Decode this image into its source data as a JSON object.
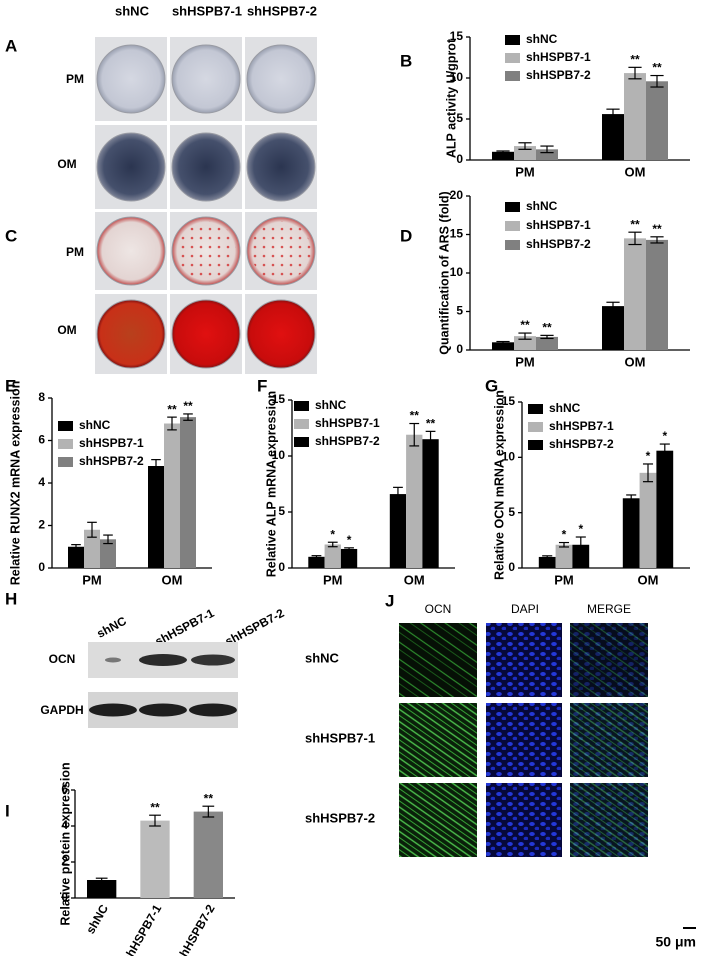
{
  "panels": {
    "A": {
      "label": "A",
      "columns": [
        "shNC",
        "shHSPB7-1",
        "shHSPB7-2"
      ],
      "rows": [
        "PM",
        "OM"
      ]
    },
    "C": {
      "label": "C",
      "rows": [
        "PM",
        "OM"
      ]
    },
    "H": {
      "label": "H",
      "columns": [
        "shNC",
        "shHSPB7-1",
        "shHSPB7-2"
      ],
      "rows": [
        "OCN",
        "GAPDH"
      ]
    },
    "J": {
      "label": "J",
      "columns": [
        "OCN",
        "DAPI",
        "MERGE"
      ],
      "rows": [
        "shNC",
        "shHSPB7-1",
        "shHSPB7-2"
      ],
      "scale": "50 μm"
    }
  },
  "chart_data": [
    {
      "type": "bar",
      "panel": "B",
      "ylabel": "ALP activity U/gprot",
      "categories": [
        "PM",
        "OM"
      ],
      "series": [
        {
          "name": "shNC",
          "color": "#000000",
          "values": [
            1.0,
            5.6
          ],
          "errors": [
            0.1,
            0.6
          ],
          "significance": [
            null,
            null
          ]
        },
        {
          "name": "shHSPB7-1",
          "color": "#b3b3b3",
          "values": [
            1.7,
            10.6
          ],
          "errors": [
            0.4,
            0.7
          ],
          "significance": [
            null,
            "**"
          ]
        },
        {
          "name": "shHSPB7-2",
          "color": "#808080",
          "values": [
            1.3,
            9.6
          ],
          "errors": [
            0.4,
            0.7
          ],
          "significance": [
            null,
            "**"
          ]
        }
      ],
      "ylim": [
        0,
        15
      ],
      "yticks": [
        0,
        5,
        10,
        15
      ],
      "grid": false,
      "legend": "upper left"
    },
    {
      "type": "bar",
      "panel": "D",
      "ylabel": "Quantification of ARS (fold)",
      "categories": [
        "PM",
        "OM"
      ],
      "series": [
        {
          "name": "shNC",
          "color": "#000000",
          "values": [
            1.0,
            5.7
          ],
          "errors": [
            0.1,
            0.5
          ],
          "significance": [
            null,
            null
          ]
        },
        {
          "name": "shHSPB7-1",
          "color": "#b3b3b3",
          "values": [
            1.8,
            14.5
          ],
          "errors": [
            0.4,
            0.8
          ],
          "significance": [
            "**",
            "**"
          ]
        },
        {
          "name": "shHSPB7-2",
          "color": "#808080",
          "values": [
            1.7,
            14.3
          ],
          "errors": [
            0.2,
            0.4
          ],
          "significance": [
            "**",
            "**"
          ]
        }
      ],
      "ylim": [
        0,
        20
      ],
      "yticks": [
        0,
        5,
        10,
        15,
        20
      ],
      "grid": false,
      "legend": "upper left"
    },
    {
      "type": "bar",
      "panel": "E",
      "ylabel": "Relative RUNX2 mRNA expression",
      "categories": [
        "PM",
        "OM"
      ],
      "series": [
        {
          "name": "shNC",
          "color": "#000000",
          "values": [
            1.0,
            4.8
          ],
          "errors": [
            0.1,
            0.3
          ],
          "significance": [
            null,
            null
          ]
        },
        {
          "name": "shHSPB7-1",
          "color": "#b3b3b3",
          "values": [
            1.8,
            6.8
          ],
          "errors": [
            0.35,
            0.3
          ],
          "significance": [
            null,
            "**"
          ]
        },
        {
          "name": "shHSPB7-2",
          "color": "#808080",
          "values": [
            1.35,
            7.1
          ],
          "errors": [
            0.2,
            0.15
          ],
          "significance": [
            null,
            "**"
          ]
        }
      ],
      "ylim": [
        0,
        8
      ],
      "yticks": [
        0,
        2,
        4,
        6,
        8
      ],
      "grid": false,
      "legend": "upper left"
    },
    {
      "type": "bar",
      "panel": "F",
      "ylabel": "Relative ALP mRNA expression",
      "categories": [
        "PM",
        "OM"
      ],
      "series": [
        {
          "name": "shNC",
          "color": "#000000",
          "values": [
            1.0,
            6.6
          ],
          "errors": [
            0.1,
            0.6
          ],
          "significance": [
            null,
            null
          ]
        },
        {
          "name": "shHSPB7-1",
          "color": "#b3b3b3",
          "values": [
            2.1,
            11.9
          ],
          "errors": [
            0.2,
            1.0
          ],
          "significance": [
            "*",
            "**"
          ]
        },
        {
          "name": "shHSPB7-2",
          "color": "#000000",
          "values": [
            1.7,
            11.5
          ],
          "errors": [
            0.1,
            0.7
          ],
          "significance": [
            "*",
            "**"
          ]
        }
      ],
      "ylim": [
        0,
        15
      ],
      "yticks": [
        0,
        5,
        10,
        15
      ],
      "grid": false,
      "legend": "upper left"
    },
    {
      "type": "bar",
      "panel": "G",
      "ylabel": "Relative OCN mRNA expression",
      "categories": [
        "PM",
        "OM"
      ],
      "series": [
        {
          "name": "shNC",
          "color": "#000000",
          "values": [
            1.0,
            6.3
          ],
          "errors": [
            0.1,
            0.3
          ],
          "significance": [
            null,
            null
          ]
        },
        {
          "name": "shHSPB7-1",
          "color": "#b3b3b3",
          "values": [
            2.1,
            8.6
          ],
          "errors": [
            0.2,
            0.8
          ],
          "significance": [
            "*",
            "*"
          ]
        },
        {
          "name": "shHSPB7-2",
          "color": "#000000",
          "values": [
            2.1,
            10.6
          ],
          "errors": [
            0.7,
            0.6
          ],
          "significance": [
            "*",
            "*"
          ]
        }
      ],
      "ylim": [
        0,
        15
      ],
      "yticks": [
        0,
        5,
        10,
        15
      ],
      "grid": false,
      "legend": "upper left"
    },
    {
      "type": "bar",
      "panel": "I",
      "ylabel": "Relative protein expression",
      "categories": [
        "shNC",
        "shHSPB7-1",
        "shHSPB7-2"
      ],
      "values": [
        1.0,
        4.3,
        4.8
      ],
      "errors": [
        0.1,
        0.3,
        0.3
      ],
      "significance": [
        null,
        "**",
        "**"
      ],
      "colors": [
        "#000000",
        "#bbbbbb",
        "#888888"
      ],
      "ylim": [
        0,
        6
      ],
      "yticks": [
        0,
        2,
        4,
        6
      ],
      "grid": false
    }
  ]
}
